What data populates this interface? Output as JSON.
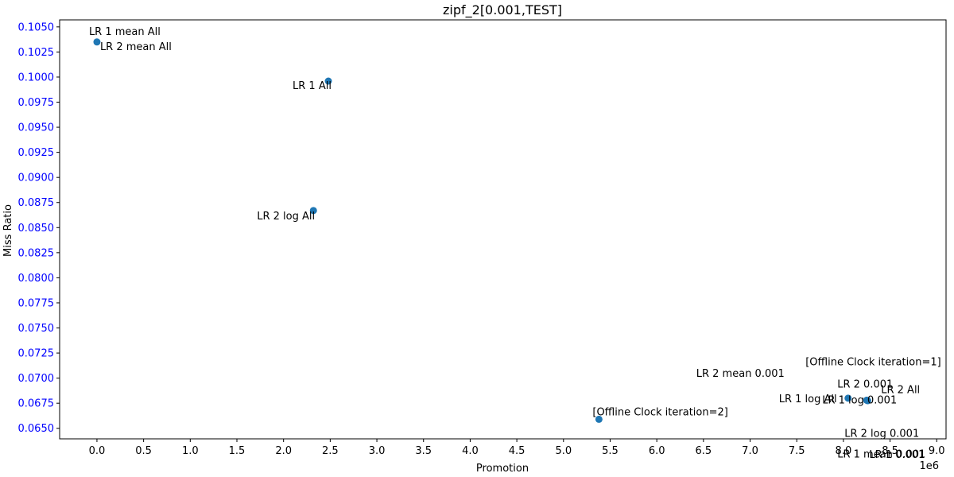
{
  "chart_data": {
    "type": "scatter",
    "title": "zipf_2[0.001,TEST]",
    "xlabel": "Promotion",
    "ylabel": "Miss Ratio",
    "x_offset_label": "1e6",
    "xlim": [
      -0.4,
      9.1
    ],
    "ylim": [
      0.06395,
      0.1057
    ],
    "x_ticks": [
      "0.0",
      "0.5",
      "1.0",
      "1.5",
      "2.0",
      "2.5",
      "3.0",
      "3.5",
      "4.0",
      "4.5",
      "5.0",
      "5.5",
      "6.0",
      "6.5",
      "7.0",
      "7.5",
      "8.0",
      "8.5",
      "9.0"
    ],
    "y_ticks": [
      "0.0650",
      "0.0675",
      "0.0700",
      "0.0725",
      "0.0750",
      "0.0775",
      "0.0800",
      "0.0825",
      "0.0850",
      "0.0875",
      "0.0900",
      "0.0925",
      "0.0950",
      "0.0975",
      "0.1000",
      "0.1025",
      "0.1050"
    ],
    "point_color": "#1f77b4",
    "ytick_color": "#0000ff",
    "grid": false,
    "points": [
      {
        "x": 0.0,
        "y": 0.1035
      },
      {
        "x": 2.48,
        "y": 0.0996
      },
      {
        "x": 2.32,
        "y": 0.0867
      },
      {
        "x": 5.38,
        "y": 0.0659
      },
      {
        "x": 8.05,
        "y": 0.068
      },
      {
        "x": 8.25,
        "y": 0.0678
      },
      {
        "x": 8.26,
        "y": 0.06775
      }
    ],
    "annotations": [
      {
        "text": "LR 1 mean All",
        "x": 0.0,
        "y": 0.1035
      },
      {
        "text": "LR 2 mean All",
        "x": 0.0,
        "y": 0.1035
      },
      {
        "text": "LR 1 All",
        "x": 2.48,
        "y": 0.0996
      },
      {
        "text": "LR 2 log All",
        "x": 2.32,
        "y": 0.0867
      },
      {
        "text": "[Offline Clock iteration=2]",
        "x": 5.38,
        "y": 0.0659
      },
      {
        "text": "LR 2 mean 0.001",
        "x": 8.05,
        "y": 0.068
      },
      {
        "text": "LR 1 log All",
        "x": 8.05,
        "y": 0.068
      },
      {
        "text": "[Offline Clock iteration=1]",
        "x": 8.25,
        "y": 0.0678
      },
      {
        "text": "LR 2 0.001",
        "x": 8.25,
        "y": 0.0678
      },
      {
        "text": "LR 1 log 0.001",
        "x": 8.25,
        "y": 0.0678
      },
      {
        "text": "LR 2 All",
        "x": 8.25,
        "y": 0.0678
      },
      {
        "text": "LR 2 log 0.001",
        "x": 8.25,
        "y": 0.0678
      },
      {
        "text": "LR 1 mean 0.001",
        "x": 8.25,
        "y": 0.0678
      },
      {
        "text": "LR 1 0.001",
        "x": 8.26,
        "y": 0.06775
      }
    ]
  }
}
